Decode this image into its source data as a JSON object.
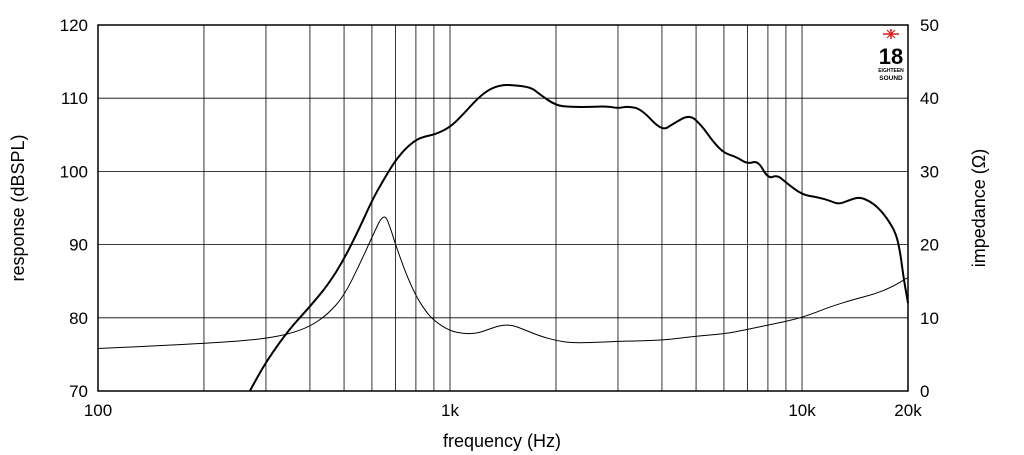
{
  "chart_data": {
    "type": "line",
    "title": "",
    "xlabel": "frequency (Hz)",
    "ylabel": "response (dBSPL)",
    "y2label": "impedance (Ω)",
    "x_scale": "log",
    "xlim": [
      100,
      20000
    ],
    "ylim": [
      70,
      120
    ],
    "y2lim": [
      0,
      50
    ],
    "grid": true,
    "x_tick_labels": [
      {
        "value": 100,
        "label": "100"
      },
      {
        "value": 1000,
        "label": "1k"
      },
      {
        "value": 10000,
        "label": "10k"
      },
      {
        "value": 20000,
        "label": "20k"
      }
    ],
    "y_tick_labels": [
      "70",
      "80",
      "90",
      "100",
      "110",
      "120"
    ],
    "y2_tick_labels": [
      "0",
      "10",
      "20",
      "30",
      "40",
      "50"
    ],
    "series": [
      {
        "axis": "left",
        "color": "#000000",
        "x": [
          270,
          300,
          350,
          400,
          450,
          500,
          550,
          600,
          650,
          700,
          750,
          800,
          850,
          900,
          1000,
          1100,
          1200,
          1300,
          1400,
          1500,
          1700,
          1800,
          2000,
          2200,
          2500,
          2800,
          3000,
          3200,
          3500,
          4000,
          4300,
          4800,
          5200,
          5600,
          6000,
          6500,
          7000,
          7500,
          8000,
          8500,
          9000,
          10000,
          11000,
          12000,
          12700,
          13500,
          14500,
          15500,
          16500,
          17500,
          18500,
          19000,
          19500,
          20000
        ],
        "y": [
          70,
          74,
          78.5,
          81.5,
          84.5,
          88,
          92,
          96,
          99,
          101.5,
          103.2,
          104.3,
          104.8,
          105,
          106,
          108,
          110,
          111.3,
          111.8,
          111.8,
          111.5,
          110.5,
          109,
          108.8,
          108.8,
          108.9,
          108.6,
          108.9,
          108.5,
          105.5,
          106.5,
          107.8,
          106.2,
          104,
          102.5,
          102,
          101,
          101.5,
          99,
          99.5,
          98.5,
          96.8,
          96.5,
          96,
          95.5,
          96,
          96.5,
          96,
          95,
          93.5,
          91.5,
          89,
          85,
          82
        ]
      },
      {
        "axis": "right",
        "color": "#000000",
        "x": [
          100,
          150,
          200,
          250,
          300,
          350,
          400,
          450,
          500,
          550,
          600,
          650,
          680,
          700,
          750,
          800,
          850,
          900,
          1000,
          1100,
          1200,
          1300,
          1400,
          1500,
          1600,
          1800,
          2000,
          2200,
          2500,
          3000,
          4000,
          5000,
          6000,
          7000,
          8000,
          10000,
          12000,
          14000,
          16000,
          18000,
          20000
        ],
        "y": [
          5.8,
          6.2,
          6.5,
          6.8,
          7.2,
          7.8,
          8.8,
          10.5,
          13,
          17,
          21,
          24.5,
          22,
          20,
          16,
          13,
          11,
          9.6,
          8.2,
          7.8,
          7.9,
          8.5,
          9,
          9,
          8.5,
          7.5,
          6.9,
          6.6,
          6.6,
          6.8,
          6.9,
          7.5,
          7.8,
          8.4,
          9,
          10,
          11.5,
          12.5,
          13.2,
          14.2,
          15.5
        ]
      }
    ]
  },
  "logo": {
    "number": "18",
    "line1": "EIGHTEEN",
    "line2": "SOUND",
    "accent": "#d61f1f"
  }
}
